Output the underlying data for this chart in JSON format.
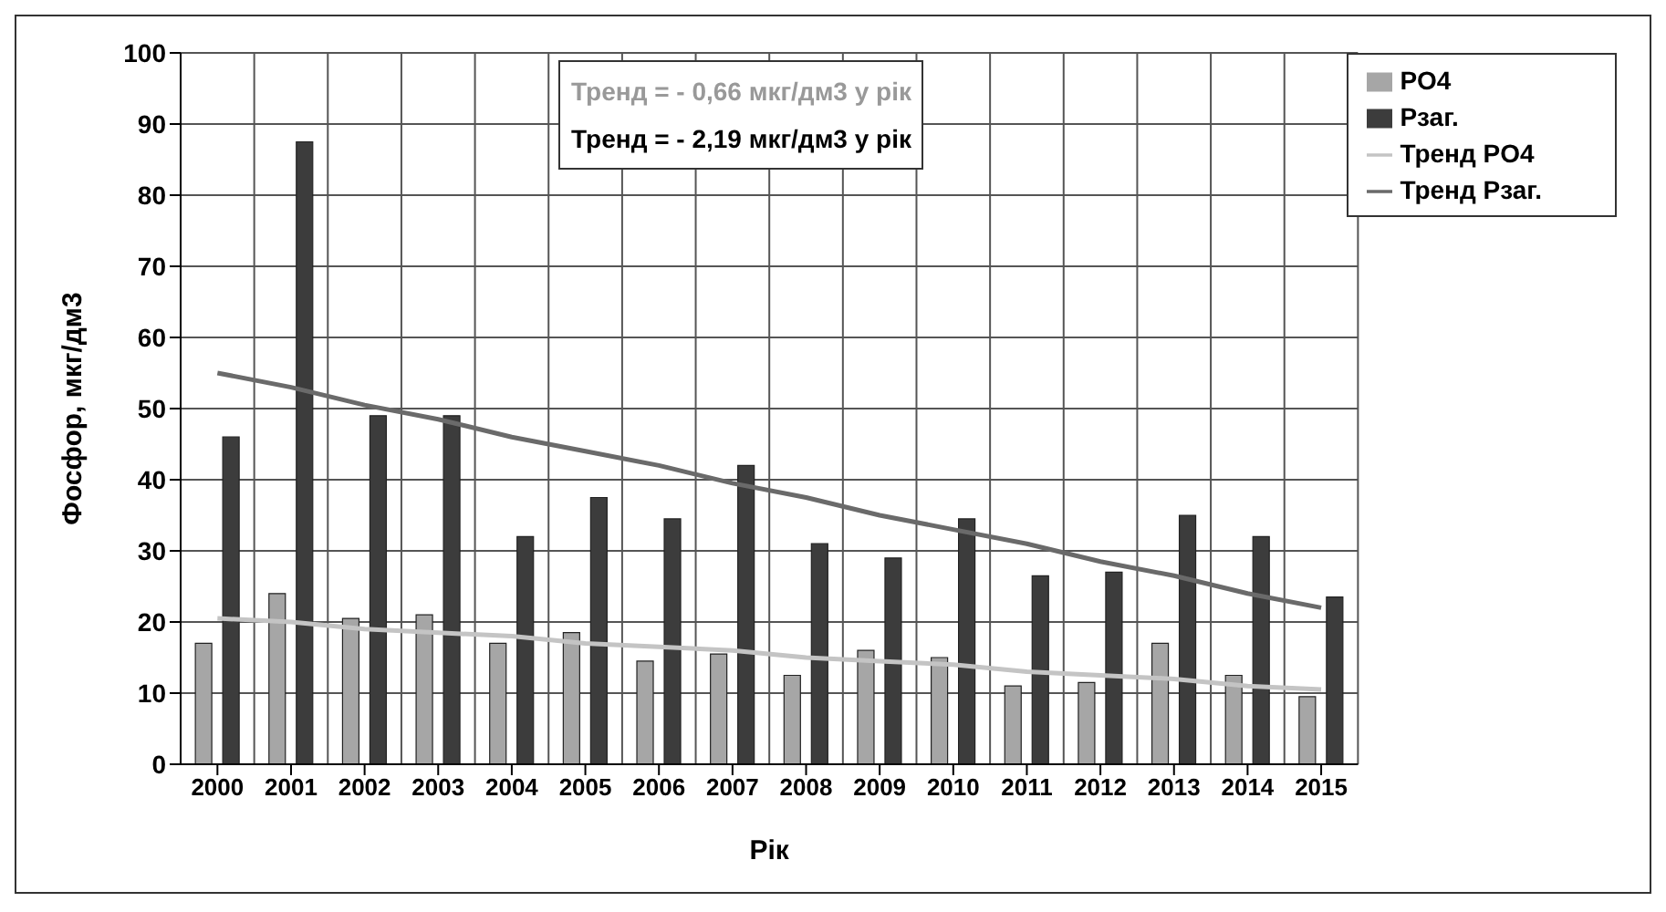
{
  "chart_data": {
    "type": "bar",
    "xlabel": "Рік",
    "ylabel": "Фосфор, мкг/дм3",
    "categories": [
      "2000",
      "2001",
      "2002",
      "2003",
      "2004",
      "2005",
      "2006",
      "2007",
      "2008",
      "2009",
      "2010",
      "2011",
      "2012",
      "2013",
      "2014",
      "2015"
    ],
    "series": [
      {
        "name": "PO4",
        "color": "#a6a6a6",
        "values": [
          17,
          24,
          20.5,
          21,
          17,
          18.5,
          14.5,
          15.5,
          12.5,
          16,
          15,
          11,
          11.5,
          17,
          12.5,
          9.5
        ]
      },
      {
        "name": "Pзаг.",
        "color": "#3c3c3c",
        "values": [
          46,
          87.5,
          49,
          49,
          32,
          37.5,
          34.5,
          42,
          31,
          29,
          34.5,
          26.5,
          27,
          35,
          32,
          23.5
        ]
      },
      {
        "name": "Тренд PO4",
        "type": "line",
        "color": "#c4c4c4",
        "values": [
          20.5,
          20,
          19,
          18.5,
          18,
          17,
          16.5,
          16,
          15,
          14.5,
          14,
          13,
          12.5,
          12,
          11,
          10.5
        ]
      },
      {
        "name": "Тренд Pзаг.",
        "type": "line",
        "color": "#6a6a6a",
        "values": [
          55,
          53,
          50.5,
          48.5,
          46,
          44,
          42,
          39.5,
          37.5,
          35,
          33,
          31,
          28.5,
          26.5,
          24,
          22
        ]
      }
    ],
    "ylim": [
      0,
      100
    ],
    "yticks": [
      0,
      10,
      20,
      30,
      40,
      50,
      60,
      70,
      80,
      90,
      100
    ],
    "grid": true,
    "legend": "top right",
    "marker": "none",
    "line_style": "solid",
    "annotations": [
      "Тренд = - 0,66 мкг/дм3 у рік",
      "Тренд = - 2,19 мкг/дм3 у рік"
    ]
  }
}
